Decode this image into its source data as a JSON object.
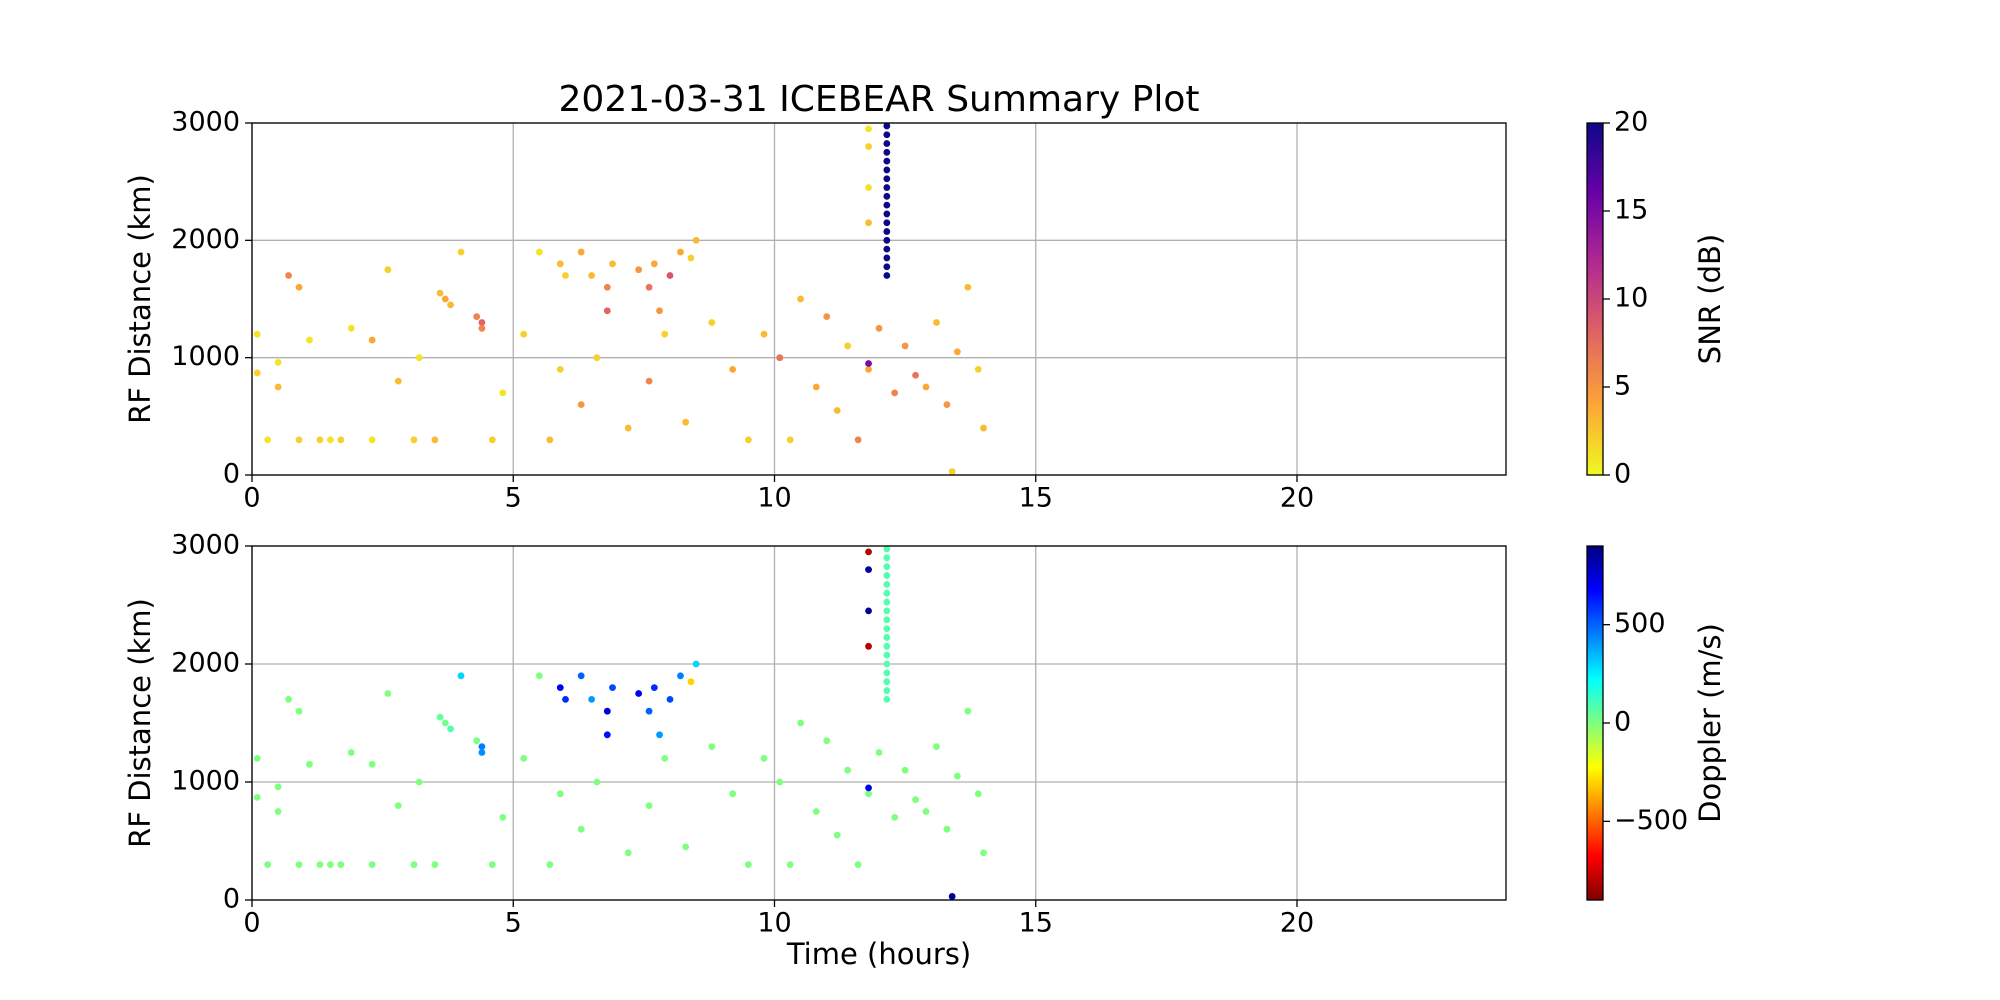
{
  "chart_data": [
    {
      "type": "scatter",
      "title": "2021-03-31 ICEBEAR Summary Plot",
      "ylabel": "RF Distance (km)",
      "xlim": [
        0,
        24
      ],
      "ylim": [
        0,
        3000
      ],
      "xticks": [
        0,
        5,
        10,
        15,
        20
      ],
      "yticks": [
        0,
        1000,
        2000,
        3000
      ],
      "grid": true,
      "colorbar": {
        "label": "SNR (dB)",
        "lim": [
          0,
          20
        ],
        "ticks": [
          0,
          5,
          10,
          15,
          20
        ],
        "colormap": [
          "#f0f921",
          "#fca636",
          "#e16462",
          "#b12a90",
          "#6a00a8",
          "#0d0887"
        ]
      },
      "series": [
        {
          "x": [
            0.1,
            0.1,
            0.3,
            0.5,
            0.5,
            0.7,
            0.9,
            0.9,
            1.1,
            1.3,
            1.5,
            1.7,
            1.9,
            2.3,
            2.3,
            2.6,
            2.8,
            3.1,
            3.2,
            3.5,
            4.0,
            4.3,
            4.6,
            4.8,
            5.2,
            5.5,
            5.7,
            5.9,
            6.3,
            6.6,
            7.2,
            7.6,
            7.9,
            8.3,
            8.8,
            9.2,
            9.5,
            9.8,
            10.1,
            10.3,
            10.5,
            10.8,
            11.0,
            11.2,
            11.4,
            11.6,
            11.8,
            12.0,
            12.3,
            12.5,
            12.7,
            12.9,
            13.1,
            13.3,
            13.5,
            13.7,
            13.9,
            14.0,
            13.4,
            11.8,
            11.8,
            11.8,
            11.8,
            11.8,
            3.6,
            3.7,
            3.8,
            4.4,
            4.4,
            5.9,
            6.0,
            6.3,
            6.5,
            6.8,
            6.8,
            6.9,
            7.4,
            7.6,
            7.7,
            7.8,
            8.0,
            8.2,
            8.4,
            8.5,
            12.15,
            12.15,
            12.15,
            12.15,
            12.15,
            12.15,
            12.15,
            12.15,
            12.15,
            12.15,
            12.15,
            12.15,
            12.15,
            12.15,
            12.15,
            12.15,
            12.15,
            12.15
          ],
          "y": [
            1200,
            870,
            300,
            750,
            960,
            1700,
            1600,
            300,
            1150,
            300,
            300,
            300,
            1250,
            1150,
            300,
            1750,
            800,
            300,
            1000,
            300,
            1900,
            1350,
            300,
            700,
            1200,
            1900,
            300,
            900,
            600,
            1000,
            400,
            800,
            1200,
            450,
            1300,
            900,
            300,
            1200,
            1000,
            300,
            1500,
            750,
            1350,
            550,
            1100,
            300,
            900,
            1250,
            700,
            1100,
            850,
            750,
            1300,
            600,
            1050,
            1600,
            900,
            400,
            30,
            2950,
            2800,
            2450,
            2150,
            950,
            1550,
            1500,
            1450,
            1300,
            1250,
            1800,
            1700,
            1900,
            1700,
            1600,
            1400,
            1800,
            1750,
            1600,
            1800,
            1400,
            1700,
            1900,
            1850,
            2000,
            1700,
            1775,
            1850,
            1925,
            2000,
            2075,
            2150,
            2225,
            2300,
            2375,
            2450,
            2525,
            2600,
            2675,
            2750,
            2825,
            2900,
            2975
          ],
          "c": [
            1,
            2,
            1,
            3,
            1,
            6,
            4,
            2,
            1,
            2,
            1,
            2,
            1,
            4,
            1,
            2,
            3,
            2,
            1,
            3,
            2,
            6,
            2,
            1,
            2,
            1,
            3,
            2,
            5,
            2,
            3,
            6,
            2,
            3,
            2,
            4,
            2,
            3,
            7,
            2,
            3,
            4,
            5,
            3,
            2,
            6,
            4,
            5,
            6,
            5,
            7,
            4,
            3,
            5,
            4,
            3,
            2,
            3,
            2,
            1,
            2,
            1,
            3,
            15,
            3,
            4,
            3,
            8,
            6,
            3,
            2,
            4,
            3,
            6,
            8,
            3,
            5,
            7,
            4,
            5,
            9,
            4,
            2,
            3,
            20,
            20,
            20,
            20,
            20,
            20,
            20,
            20,
            20,
            20,
            20,
            20,
            20,
            20,
            20,
            20,
            20,
            20
          ]
        }
      ]
    },
    {
      "type": "scatter",
      "ylabel": "RF Distance (km)",
      "xlabel": "Time (hours)",
      "xlim": [
        0,
        24
      ],
      "ylim": [
        0,
        3000
      ],
      "xticks": [
        0,
        5,
        10,
        15,
        20
      ],
      "yticks": [
        0,
        1000,
        2000,
        3000
      ],
      "grid": true,
      "colorbar": {
        "label": "Doppler (m/s)",
        "lim": [
          -900,
          900
        ],
        "ticks": [
          {
            "value": -500,
            "label": "−500"
          },
          0,
          500
        ],
        "colormap": [
          "#7f0000",
          "#ff0000",
          "#ff7f00",
          "#ffff00",
          "#7fff7f",
          "#00ffff",
          "#007fff",
          "#0000ff",
          "#00007f"
        ]
      },
      "series": [
        {
          "x": [
            0.1,
            0.1,
            0.3,
            0.5,
            0.5,
            0.7,
            0.9,
            0.9,
            1.1,
            1.3,
            1.5,
            1.7,
            1.9,
            2.3,
            2.3,
            2.6,
            2.8,
            3.1,
            3.2,
            3.5,
            4.0,
            4.3,
            4.6,
            4.8,
            5.2,
            5.5,
            5.7,
            5.9,
            6.3,
            6.6,
            7.2,
            7.6,
            7.9,
            8.3,
            8.8,
            9.2,
            9.5,
            9.8,
            10.1,
            10.3,
            10.5,
            10.8,
            11.0,
            11.2,
            11.4,
            11.6,
            11.8,
            12.0,
            12.3,
            12.5,
            12.7,
            12.9,
            13.1,
            13.3,
            13.5,
            13.7,
            13.9,
            14.0,
            13.4,
            11.8,
            11.8,
            11.8,
            11.8,
            11.8,
            3.6,
            3.7,
            3.8,
            4.4,
            4.4,
            5.9,
            6.0,
            6.3,
            6.5,
            6.8,
            6.8,
            6.9,
            7.4,
            7.6,
            7.7,
            7.8,
            8.0,
            8.2,
            8.4,
            8.5,
            12.15,
            12.15,
            12.15,
            12.15,
            12.15,
            12.15,
            12.15,
            12.15,
            12.15,
            12.15,
            12.15,
            12.15,
            12.15,
            12.15,
            12.15,
            12.15,
            12.15,
            12.15
          ],
          "y": [
            1200,
            870,
            300,
            750,
            960,
            1700,
            1600,
            300,
            1150,
            300,
            300,
            300,
            1250,
            1150,
            300,
            1750,
            800,
            300,
            1000,
            300,
            1900,
            1350,
            300,
            700,
            1200,
            1900,
            300,
            900,
            600,
            1000,
            400,
            800,
            1200,
            450,
            1300,
            900,
            300,
            1200,
            1000,
            300,
            1500,
            750,
            1350,
            550,
            1100,
            300,
            900,
            1250,
            700,
            1100,
            850,
            750,
            1300,
            600,
            1050,
            1600,
            900,
            400,
            30,
            2950,
            2800,
            2450,
            2150,
            950,
            1550,
            1500,
            1450,
            1300,
            1250,
            1800,
            1700,
            1900,
            1700,
            1600,
            1400,
            1800,
            1750,
            1600,
            1800,
            1400,
            1700,
            1900,
            1850,
            2000,
            1700,
            1775,
            1850,
            1925,
            2000,
            2075,
            2150,
            2225,
            2300,
            2375,
            2450,
            2525,
            2600,
            2675,
            2750,
            2825,
            2900,
            2975
          ],
          "c": [
            0,
            0,
            0,
            0,
            0,
            0,
            0,
            0,
            0,
            0,
            0,
            0,
            0,
            0,
            0,
            0,
            0,
            0,
            0,
            0,
            300,
            0,
            0,
            0,
            0,
            0,
            0,
            0,
            0,
            0,
            0,
            0,
            0,
            0,
            0,
            0,
            0,
            0,
            0,
            0,
            0,
            0,
            0,
            0,
            0,
            0,
            0,
            0,
            0,
            0,
            0,
            0,
            0,
            0,
            0,
            0,
            0,
            0,
            850,
            -800,
            850,
            850,
            -800,
            700,
            50,
            30,
            80,
            450,
            420,
            700,
            600,
            500,
            400,
            750,
            650,
            550,
            700,
            500,
            600,
            400,
            550,
            450,
            -300,
            300,
            80,
            80,
            80,
            80,
            80,
            80,
            80,
            80,
            80,
            80,
            80,
            80,
            80,
            80,
            80,
            80,
            80,
            80
          ]
        }
      ]
    }
  ]
}
